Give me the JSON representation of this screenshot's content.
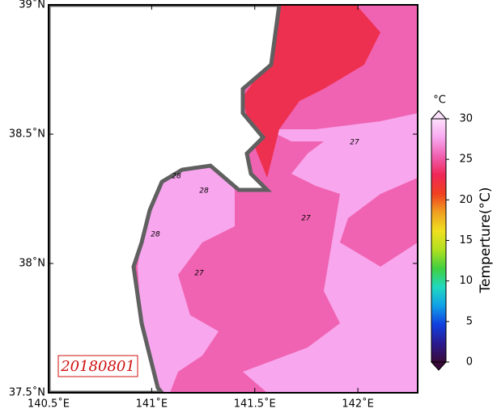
{
  "chart_data": {
    "type": "map",
    "xlim": [
      140.5,
      142.29
    ],
    "ylim": [
      37.5,
      39
    ],
    "xticks": [
      {
        "value": 140.5,
        "label": "140.5˚E"
      },
      {
        "value": 141,
        "label": "141˚E"
      },
      {
        "value": 141.5,
        "label": "141.5˚E"
      },
      {
        "value": 142,
        "label": "142˚E"
      }
    ],
    "yticks": [
      {
        "value": 37.5,
        "label": "37.5˚N"
      },
      {
        "value": 38,
        "label": "38˚N"
      },
      {
        "value": 38.5,
        "label": "38.5˚N"
      },
      {
        "value": 39,
        "label": "39˚N"
      }
    ],
    "date_label": "20180801",
    "contour_labels": [
      27,
      27,
      27,
      28,
      28,
      28
    ],
    "colorbar": {
      "label": "Temperture(°C)",
      "unit": "°C",
      "lim": [
        0,
        30
      ],
      "ticks": [
        0,
        5,
        10,
        15,
        20,
        25,
        30
      ],
      "colors": [
        "#3a0a3a",
        "#2a1a90",
        "#1040e0",
        "#10a0e8",
        "#20d8c0",
        "#40d040",
        "#b0e020",
        "#f0e020",
        "#f0a020",
        "#f04020",
        "#f02858",
        "#f060b0",
        "#f8a8f0",
        "#fce0fc"
      ]
    }
  }
}
